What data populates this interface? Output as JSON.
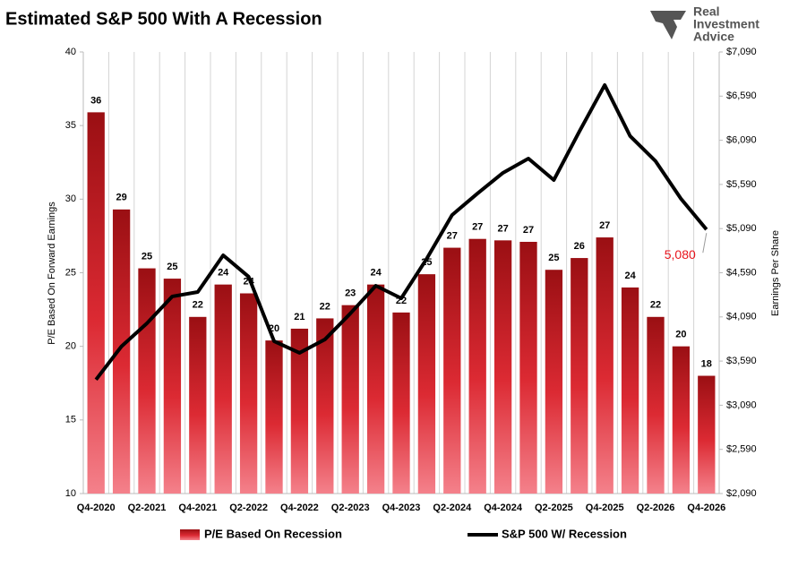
{
  "chart_data": {
    "type": "bar_line",
    "title": "Estimated S&P 500 With A Recession",
    "logo": [
      "Real",
      "Investment",
      "Advice"
    ],
    "y_label": "P/E Based On Forward Earnings",
    "y2_label": "Earnings Per Share",
    "categories": [
      "Q4-2020",
      null,
      "Q2-2021",
      null,
      "Q4-2021",
      null,
      "Q2-2022",
      null,
      "Q4-2022",
      null,
      "Q2-2023",
      null,
      "Q4-2023",
      null,
      "Q2-2024",
      null,
      "Q4-2024",
      null,
      "Q2-2025",
      null,
      "Q4-2025",
      null,
      "Q2-2026",
      null,
      "Q4-2026"
    ],
    "series": [
      {
        "name": "P/E Based On Recession",
        "type": "bar",
        "color": "#b01319",
        "values": [
          35.9,
          29.3,
          25.3,
          24.6,
          22.0,
          24.2,
          23.6,
          20.4,
          21.2,
          21.9,
          22.8,
          24.2,
          22.3,
          24.9,
          26.7,
          27.3,
          27.2,
          27.1,
          25.2,
          26.0,
          27.4,
          24.0,
          22.0,
          20.0,
          18.0
        ],
        "value_labels": [
          "36",
          "29",
          "25",
          "25",
          "22",
          "24",
          "24",
          "20",
          "21",
          "22",
          "23",
          "24",
          "22",
          "25",
          "27",
          "27",
          "27",
          "27",
          "25",
          "26",
          "27",
          "24",
          "22",
          "20",
          "18"
        ]
      },
      {
        "name": "S&P 500 W/ Recession",
        "type": "line",
        "axis": "y2",
        "color": "#000000",
        "values": [
          3380,
          3756,
          4017,
          4322,
          4372,
          4788,
          4545,
          3815,
          3683,
          3835,
          4129,
          4443,
          4301,
          4748,
          5244,
          5488,
          5721,
          5883,
          5640,
          6188,
          6715,
          6137,
          5853,
          5427,
          5080
        ],
        "value_labels": [
          null,
          null,
          null,
          null,
          null,
          null,
          null,
          null,
          null,
          null,
          null,
          null,
          null,
          null,
          null,
          null,
          null,
          null,
          null,
          null,
          null,
          null,
          null,
          null,
          "5,080"
        ],
        "label_color": "#e8141c"
      }
    ],
    "ylim": [
      10,
      40
    ],
    "yticks": [
      10,
      15,
      20,
      25,
      30,
      35,
      40
    ],
    "y2lim": [
      2090,
      7090
    ],
    "y2ticks": [
      {
        "value": 2090,
        "label": "$2,090"
      },
      {
        "value": 2590,
        "label": "$2,590"
      },
      {
        "value": 3090,
        "label": "$3,090"
      },
      {
        "value": 3590,
        "label": "$3,590"
      },
      {
        "value": 4090,
        "label": "$4,090"
      },
      {
        "value": 4590,
        "label": "$4,590"
      },
      {
        "value": 5090,
        "label": "$5,090"
      },
      {
        "value": 5590,
        "label": "$5,590"
      },
      {
        "value": 6090,
        "label": "$6,090"
      },
      {
        "value": 6590,
        "label": "$6,590"
      },
      {
        "value": 7090,
        "label": "$7,090"
      }
    ],
    "grid": "x"
  }
}
